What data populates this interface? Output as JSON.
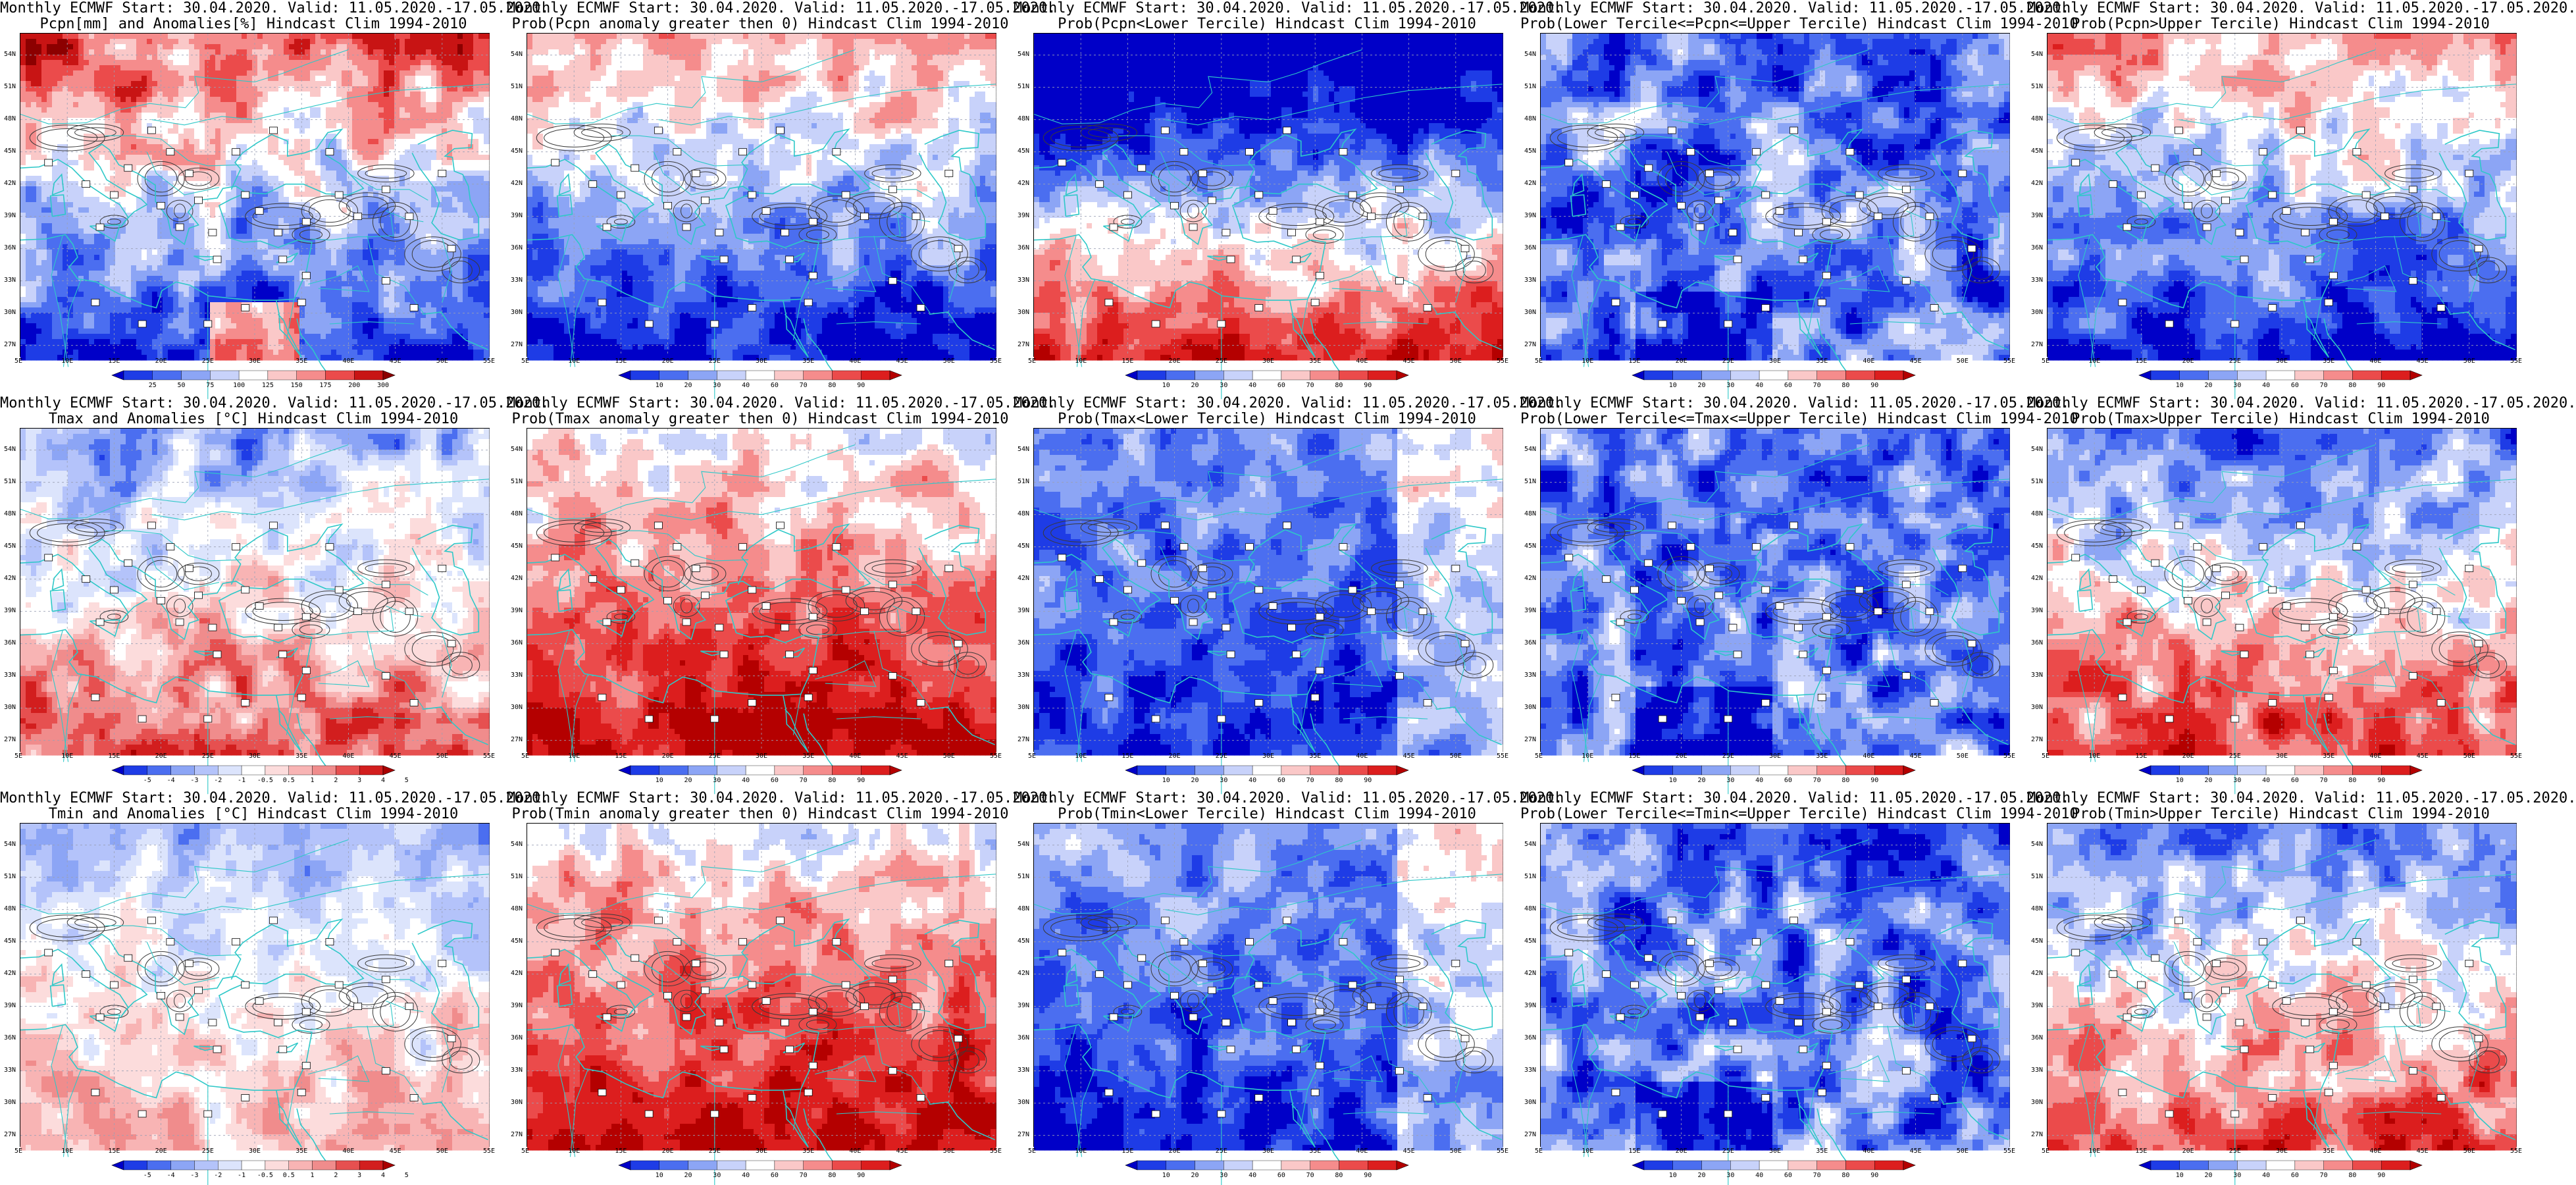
{
  "figure": {
    "panels": [
      {
        "id": "pcpn-anom",
        "title1": "Monthly ECMWF Start: 30.04.2020. Valid: 11.05.2020.-17.05.2020.",
        "title2": "Pcpn[mm] and Anomalies[%] Hindcast Clim 1994-2010",
        "scale": "anom-pcpn",
        "pattern": "pcpn-anom"
      },
      {
        "id": "pcpn-prob-pos",
        "title1": "Monthly ECMWF Start: 30.04.2020. Valid: 11.05.2020.-17.05.2020.",
        "title2": "Prob(Pcpn anomaly greater then 0) Hindcast Clim 1994-2010",
        "scale": "prob",
        "pattern": "dry"
      },
      {
        "id": "pcpn-prob-lower",
        "title1": "Monthly ECMWF Start: 30.04.2020. Valid: 11.05.2020.-17.05.2020.",
        "title2": "Prob(Pcpn<Lower Tercile) Hindcast Clim 1994-2010",
        "scale": "prob",
        "pattern": "dry-lower"
      },
      {
        "id": "pcpn-prob-middle",
        "title1": "Monthly ECMWF Start: 30.04.2020. Valid: 11.05.2020.-17.05.2020.",
        "title2": "Prob(Lower Tercile<=Pcpn<=Upper Tercile) Hindcast Clim 1994-2010",
        "scale": "prob",
        "pattern": "middle-blue"
      },
      {
        "id": "pcpn-prob-upper",
        "title1": "Monthly ECMWF Start: 30.04.2020. Valid: 11.05.2020.-17.05.2020.",
        "title2": "Prob(Pcpn>Upper Tercile) Hindcast Clim 1994-2010",
        "scale": "prob",
        "pattern": "dry"
      },
      {
        "id": "tmax-anom",
        "title1": "Monthly ECMWF Start: 30.04.2020. Valid: 11.05.2020.-17.05.2020.",
        "title2": "Tmax and Anomalies [°C] Hindcast Clim 1994-2010",
        "scale": "anom-temp",
        "pattern": "warm"
      },
      {
        "id": "tmax-prob-pos",
        "title1": "Monthly ECMWF Start: 30.04.2020. Valid: 11.05.2020.-17.05.2020.",
        "title2": "Prob(Tmax anomaly greater then 0) Hindcast Clim 1994-2010",
        "scale": "prob",
        "pattern": "hot"
      },
      {
        "id": "tmax-prob-lower",
        "title1": "Monthly ECMWF Start: 30.04.2020. Valid: 11.05.2020.-17.05.2020.",
        "title2": "Prob(Tmax<Lower Tercile) Hindcast Clim 1994-2010",
        "scale": "prob",
        "pattern": "cold-low"
      },
      {
        "id": "tmax-prob-middle",
        "title1": "Monthly ECMWF Start: 30.04.2020. Valid: 11.05.2020.-17.05.2020.",
        "title2": "Prob(Lower Tercile<=Tmax<=Upper Tercile) Hindcast Clim 1994-2010",
        "scale": "prob",
        "pattern": "middle-blue"
      },
      {
        "id": "tmax-prob-upper",
        "title1": "Monthly ECMWF Start: 30.04.2020. Valid: 11.05.2020.-17.05.2020.",
        "title2": "Prob(Tmax>Upper Tercile) Hindcast Clim 1994-2010",
        "scale": "prob",
        "pattern": "hot-upper"
      },
      {
        "id": "tmin-anom",
        "title1": "Monthly ECMWF Start: 30.04.2020. Valid: 11.05.2020.-17.05.2020.",
        "title2": "Tmin and Anomalies [°C] Hindcast Clim 1994-2010",
        "scale": "anom-temp",
        "pattern": "warm-light"
      },
      {
        "id": "tmin-prob-pos",
        "title1": "Monthly ECMWF Start: 30.04.2020. Valid: 11.05.2020.-17.05.2020.",
        "title2": "Prob(Tmin anomaly greater then 0) Hindcast Clim 1994-2010",
        "scale": "prob",
        "pattern": "hot"
      },
      {
        "id": "tmin-prob-lower",
        "title1": "Monthly ECMWF Start: 30.04.2020. Valid: 11.05.2020.-17.05.2020.",
        "title2": "Prob(Tmin<Lower Tercile) Hindcast Clim 1994-2010",
        "scale": "prob",
        "pattern": "cold-low"
      },
      {
        "id": "tmin-prob-middle",
        "title1": "Monthly ECMWF Start: 30.04.2020. Valid: 11.05.2020.-17.05.2020.",
        "title2": "Prob(Lower Tercile<=Tmin<=Upper Tercile) Hindcast Clim 1994-2010",
        "scale": "prob",
        "pattern": "middle-blue"
      },
      {
        "id": "tmin-prob-upper",
        "title1": "Monthly ECMWF Start: 30.04.2020. Valid: 11.05.2020.-17.05.2020.",
        "title2": "Prob(Tmin>Upper Tercile) Hindcast Clim 1994-2010",
        "scale": "prob",
        "pattern": "hot-upper"
      }
    ],
    "lat_labels": [
      "54N",
      "51N",
      "48N",
      "45N",
      "42N",
      "39N",
      "36N",
      "33N",
      "30N",
      "27N"
    ],
    "lon_labels": [
      "5E",
      "10E",
      "15E",
      "20E",
      "25E",
      "30E",
      "35E",
      "40E",
      "45E",
      "50E",
      "55E"
    ],
    "colorbars": {
      "prob": {
        "labels": [
          "10",
          "20",
          "30",
          "40",
          "60",
          "70",
          "80",
          "90"
        ],
        "colors": [
          "#0000c8",
          "#1e3ce6",
          "#4b6ef0",
          "#8ca5f5",
          "#c8d2fa",
          "#ffffff",
          "#fac8c8",
          "#f58c8c",
          "#eb4b4b",
          "#dc1e1e",
          "#b40000"
        ]
      },
      "anom-temp": {
        "labels": [
          "-5",
          "-4",
          "-3",
          "-2",
          "-1",
          "-0.5",
          "0.5",
          "1",
          "2",
          "3",
          "4",
          "5"
        ],
        "colors": [
          "#0000c8",
          "#1e3ce6",
          "#4b6ef0",
          "#8ca5f5",
          "#b4c3fa",
          "#dce4fc",
          "#ffffff",
          "#fcdcdc",
          "#f8b4b4",
          "#f08c8c",
          "#e65050",
          "#d21e1e",
          "#aa0000"
        ]
      },
      "anom-pcpn": {
        "labels": [
          "25",
          "50",
          "75",
          "100",
          "125",
          "150",
          "175",
          "200",
          "300"
        ],
        "colors": [
          "#0000c8",
          "#1e3ce6",
          "#4b6ef0",
          "#8ca5f5",
          "#c8d2fa",
          "#ffffff",
          "#fac8c8",
          "#f58c8c",
          "#eb4b4b",
          "#c81414",
          "#8c0000"
        ]
      }
    }
  }
}
